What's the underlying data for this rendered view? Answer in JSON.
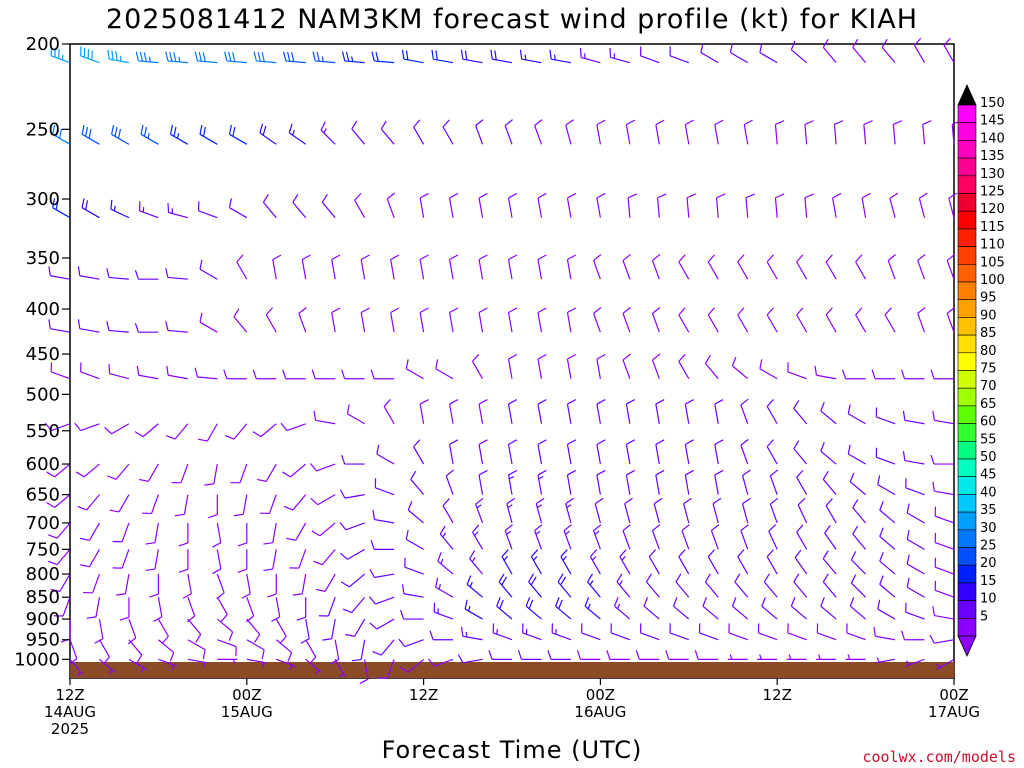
{
  "chart_data": {
    "type": "wind-barb time-height profile",
    "title": "2025081412 NAM3KM forecast wind profile (kt) for KIAH",
    "xlabel": "Forecast Time (UTC)",
    "ylabel": "",
    "y_scale": "log-pressure",
    "y_units": "hPa",
    "y_range": [
      1050,
      200
    ],
    "y_ticks": [
      200,
      250,
      300,
      350,
      400,
      450,
      500,
      550,
      600,
      650,
      700,
      750,
      800,
      850,
      900,
      950,
      1000
    ],
    "x_range_hours": [
      0,
      60
    ],
    "x_ticks": [
      {
        "hour": 0,
        "lines": [
          "12Z",
          "14AUG",
          "2025"
        ]
      },
      {
        "hour": 12,
        "lines": [
          "00Z",
          "15AUG"
        ]
      },
      {
        "hour": 24,
        "lines": [
          "12Z"
        ]
      },
      {
        "hour": 36,
        "lines": [
          "00Z",
          "16AUG"
        ]
      },
      {
        "hour": 48,
        "lines": [
          "12Z"
        ]
      },
      {
        "hour": 60,
        "lines": [
          "00Z",
          "17AUG"
        ]
      }
    ],
    "time_step_hours": 2,
    "ground_band_color": "#8b4b26",
    "colorbar": {
      "levels": [
        5,
        10,
        15,
        20,
        25,
        30,
        35,
        40,
        45,
        50,
        55,
        60,
        65,
        70,
        75,
        80,
        85,
        90,
        95,
        100,
        105,
        110,
        115,
        120,
        125,
        130,
        135,
        140,
        145,
        150
      ],
      "colors": [
        "#8b00ff",
        "#6a00ff",
        "#3300ff",
        "#0020ff",
        "#0050ff",
        "#0078ff",
        "#00a0ff",
        "#00c8ff",
        "#00e8e8",
        "#00ffc0",
        "#00ff80",
        "#30ff30",
        "#60ff00",
        "#a0ff00",
        "#d0ff00",
        "#ffff00",
        "#ffe000",
        "#ffc000",
        "#ffa000",
        "#ff8000",
        "#ff6000",
        "#ff4000",
        "#ff2000",
        "#ff0000",
        "#f00030",
        "#ff0060",
        "#ff0090",
        "#ff00c0",
        "#ff00e0",
        "#ff00ff"
      ],
      "extend_top_color": "#000000",
      "extend_bottom_color": "#8b00ff"
    },
    "wind_levels_hpa": [
      210,
      260,
      315,
      370,
      425,
      480,
      540,
      600,
      650,
      700,
      750,
      800,
      850,
      900,
      950,
      1000
    ],
    "wind_speeds_kt": [
      [
        36,
        38,
        36,
        34,
        33,
        32,
        30,
        30,
        28,
        27,
        24,
        22,
        20,
        20,
        19,
        18,
        16,
        15,
        14,
        13,
        12,
        12,
        10,
        10,
        10,
        10,
        8,
        8,
        8,
        8,
        8
      ],
      [
        30,
        28,
        28,
        26,
        24,
        22,
        20,
        18,
        16,
        14,
        12,
        10,
        10,
        10,
        10,
        10,
        9,
        8,
        8,
        8,
        8,
        8,
        8,
        8,
        8,
        8,
        8,
        8,
        8,
        8,
        8
      ],
      [
        22,
        18,
        16,
        14,
        14,
        12,
        10,
        10,
        10,
        10,
        9,
        8,
        8,
        8,
        8,
        8,
        8,
        8,
        8,
        8,
        8,
        8,
        8,
        8,
        8,
        8,
        8,
        8,
        8,
        8,
        8
      ],
      [
        12,
        12,
        12,
        12,
        12,
        10,
        9,
        8,
        8,
        8,
        8,
        8,
        8,
        8,
        8,
        8,
        8,
        8,
        8,
        8,
        8,
        8,
        8,
        8,
        8,
        8,
        8,
        8,
        8,
        8,
        8
      ],
      [
        10,
        10,
        10,
        10,
        10,
        9,
        9,
        8,
        8,
        8,
        8,
        8,
        8,
        8,
        8,
        8,
        8,
        8,
        8,
        8,
        8,
        8,
        8,
        8,
        8,
        8,
        8,
        8,
        8,
        8,
        8
      ],
      [
        8,
        8,
        8,
        8,
        8,
        8,
        8,
        8,
        8,
        8,
        8,
        8,
        8,
        8,
        8,
        8,
        8,
        8,
        8,
        8,
        8,
        8,
        8,
        8,
        8,
        8,
        8,
        8,
        8,
        8,
        8
      ],
      [
        8,
        8,
        8,
        8,
        8,
        8,
        8,
        8,
        8,
        8,
        8,
        8,
        8,
        8,
        8,
        10,
        10,
        10,
        10,
        10,
        10,
        10,
        10,
        10,
        10,
        10,
        10,
        10,
        10,
        10,
        8
      ],
      [
        8,
        8,
        8,
        8,
        8,
        8,
        8,
        8,
        8,
        8,
        10,
        10,
        10,
        10,
        12,
        12,
        12,
        12,
        12,
        12,
        12,
        10,
        10,
        10,
        10,
        10,
        10,
        10,
        10,
        10,
        8
      ],
      [
        8,
        8,
        8,
        8,
        8,
        8,
        8,
        8,
        8,
        8,
        10,
        10,
        10,
        12,
        12,
        14,
        14,
        12,
        12,
        12,
        12,
        10,
        10,
        10,
        10,
        10,
        10,
        10,
        10,
        10,
        8
      ],
      [
        8,
        8,
        8,
        8,
        8,
        8,
        8,
        8,
        8,
        8,
        10,
        10,
        10,
        12,
        14,
        14,
        14,
        14,
        12,
        12,
        12,
        10,
        10,
        10,
        10,
        10,
        10,
        10,
        10,
        10,
        8
      ],
      [
        8,
        8,
        8,
        8,
        8,
        8,
        8,
        8,
        8,
        8,
        10,
        10,
        10,
        14,
        14,
        14,
        14,
        14,
        14,
        12,
        12,
        10,
        10,
        10,
        10,
        10,
        10,
        10,
        10,
        10,
        8
      ],
      [
        8,
        8,
        8,
        8,
        8,
        8,
        8,
        8,
        8,
        8,
        10,
        10,
        12,
        14,
        14,
        16,
        16,
        16,
        14,
        14,
        12,
        10,
        10,
        10,
        10,
        10,
        10,
        10,
        10,
        10,
        8
      ],
      [
        8,
        8,
        8,
        8,
        8,
        8,
        8,
        8,
        10,
        10,
        12,
        12,
        12,
        14,
        16,
        18,
        18,
        18,
        16,
        14,
        12,
        10,
        10,
        10,
        10,
        10,
        10,
        10,
        10,
        10,
        8
      ],
      [
        8,
        8,
        8,
        8,
        8,
        8,
        8,
        8,
        10,
        10,
        12,
        12,
        12,
        14,
        16,
        18,
        18,
        18,
        16,
        14,
        12,
        10,
        10,
        10,
        10,
        10,
        10,
        10,
        10,
        10,
        8
      ],
      [
        8,
        8,
        8,
        8,
        8,
        8,
        8,
        8,
        8,
        8,
        10,
        10,
        10,
        12,
        14,
        14,
        14,
        14,
        12,
        12,
        10,
        10,
        10,
        8,
        8,
        8,
        8,
        8,
        8,
        8,
        8
      ],
      [
        6,
        6,
        6,
        6,
        6,
        6,
        6,
        6,
        6,
        6,
        8,
        8,
        8,
        8,
        10,
        10,
        10,
        10,
        8,
        8,
        8,
        8,
        8,
        6,
        6,
        6,
        6,
        6,
        6,
        6,
        6
      ]
    ],
    "wind_dirs_deg": [
      [
        290,
        290,
        280,
        275,
        275,
        275,
        275,
        275,
        275,
        275,
        275,
        275,
        280,
        280,
        280,
        280,
        280,
        280,
        285,
        285,
        290,
        290,
        300,
        300,
        300,
        310,
        320,
        320,
        320,
        330,
        330
      ],
      [
        300,
        300,
        300,
        300,
        300,
        300,
        300,
        305,
        305,
        315,
        320,
        320,
        330,
        330,
        340,
        340,
        340,
        345,
        350,
        350,
        350,
        350,
        350,
        350,
        355,
        355,
        355,
        355,
        355,
        355,
        355
      ],
      [
        300,
        300,
        295,
        290,
        285,
        290,
        300,
        320,
        320,
        320,
        330,
        340,
        350,
        350,
        350,
        350,
        350,
        350,
        350,
        355,
        355,
        355,
        355,
        355,
        355,
        355,
        350,
        350,
        345,
        345,
        345
      ],
      [
        280,
        280,
        275,
        270,
        275,
        300,
        330,
        350,
        350,
        350,
        350,
        350,
        350,
        350,
        350,
        350,
        350,
        350,
        340,
        340,
        340,
        330,
        330,
        330,
        330,
        330,
        330,
        330,
        340,
        340,
        340
      ],
      [
        280,
        280,
        275,
        270,
        275,
        300,
        320,
        330,
        340,
        350,
        350,
        350,
        350,
        350,
        350,
        350,
        350,
        350,
        340,
        340,
        340,
        330,
        330,
        330,
        330,
        330,
        330,
        330,
        330,
        340,
        340
      ],
      [
        290,
        290,
        285,
        280,
        280,
        275,
        270,
        270,
        270,
        270,
        270,
        270,
        300,
        300,
        330,
        350,
        350,
        350,
        350,
        340,
        340,
        330,
        320,
        310,
        300,
        290,
        280,
        270,
        270,
        270,
        270
      ],
      [
        250,
        250,
        240,
        230,
        220,
        210,
        220,
        230,
        250,
        280,
        300,
        330,
        350,
        350,
        350,
        350,
        350,
        350,
        350,
        350,
        350,
        350,
        350,
        340,
        330,
        320,
        310,
        300,
        290,
        280,
        280
      ],
      [
        230,
        230,
        220,
        210,
        200,
        190,
        200,
        210,
        230,
        250,
        270,
        300,
        330,
        350,
        350,
        350,
        350,
        350,
        350,
        350,
        350,
        350,
        350,
        340,
        330,
        320,
        310,
        300,
        290,
        280,
        270
      ],
      [
        230,
        220,
        210,
        200,
        190,
        180,
        190,
        200,
        220,
        240,
        260,
        290,
        320,
        340,
        350,
        350,
        350,
        350,
        350,
        350,
        350,
        350,
        350,
        345,
        340,
        330,
        320,
        310,
        300,
        290,
        280
      ],
      [
        220,
        210,
        200,
        190,
        180,
        170,
        180,
        190,
        210,
        230,
        250,
        280,
        310,
        330,
        340,
        345,
        345,
        345,
        345,
        345,
        345,
        345,
        345,
        345,
        340,
        335,
        330,
        320,
        310,
        300,
        290
      ],
      [
        220,
        210,
        200,
        190,
        180,
        170,
        180,
        190,
        200,
        220,
        240,
        270,
        300,
        320,
        330,
        340,
        340,
        340,
        340,
        340,
        340,
        340,
        340,
        340,
        335,
        330,
        325,
        320,
        310,
        300,
        290
      ],
      [
        210,
        200,
        190,
        180,
        170,
        160,
        170,
        180,
        190,
        210,
        230,
        260,
        290,
        310,
        320,
        330,
        330,
        330,
        330,
        330,
        330,
        330,
        330,
        330,
        330,
        325,
        320,
        315,
        310,
        300,
        290
      ],
      [
        200,
        190,
        180,
        170,
        160,
        150,
        160,
        170,
        180,
        200,
        220,
        250,
        280,
        300,
        310,
        320,
        320,
        320,
        320,
        320,
        320,
        320,
        320,
        320,
        320,
        320,
        320,
        315,
        310,
        300,
        290
      ],
      [
        180,
        170,
        160,
        150,
        140,
        130,
        140,
        150,
        170,
        190,
        210,
        240,
        270,
        290,
        300,
        310,
        310,
        310,
        310,
        310,
        310,
        310,
        310,
        310,
        310,
        310,
        310,
        310,
        300,
        290,
        280
      ],
      [
        160,
        150,
        140,
        130,
        120,
        110,
        120,
        130,
        150,
        170,
        190,
        220,
        250,
        270,
        280,
        290,
        290,
        290,
        290,
        290,
        290,
        290,
        290,
        290,
        290,
        290,
        290,
        290,
        280,
        270,
        260
      ],
      [
        140,
        130,
        120,
        110,
        100,
        90,
        100,
        110,
        130,
        150,
        170,
        200,
        230,
        250,
        260,
        270,
        270,
        270,
        270,
        270,
        270,
        270,
        270,
        270,
        270,
        270,
        270,
        270,
        260,
        250,
        240
      ]
    ]
  },
  "credit": "coolwx.com/models"
}
